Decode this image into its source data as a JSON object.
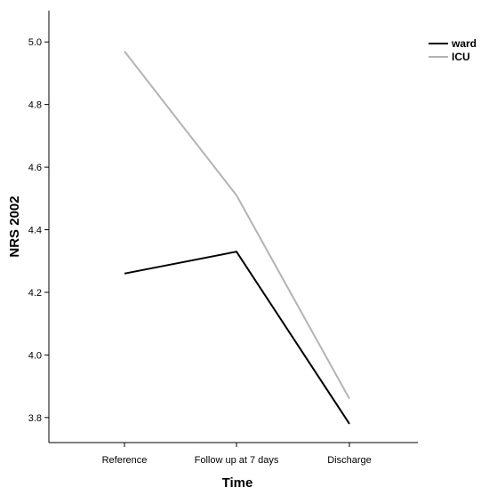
{
  "chart_data": {
    "type": "line",
    "categories": [
      "Reference",
      "Follow up at 7 days",
      "Discharge"
    ],
    "series": [
      {
        "name": "ward",
        "values": [
          4.26,
          4.33,
          3.78
        ],
        "color": "#000000"
      },
      {
        "name": "ICU",
        "values": [
          4.97,
          4.51,
          3.86
        ],
        "color": "#b3b3b3"
      }
    ],
    "xlabel": "Time",
    "ylabel": "NRS 2002",
    "ylim": [
      3.72,
      5.1
    ],
    "yticks": [
      3.8,
      4.0,
      4.2,
      4.4,
      4.6,
      4.8,
      5.0
    ],
    "grid": false,
    "legend_position": "top-right"
  }
}
